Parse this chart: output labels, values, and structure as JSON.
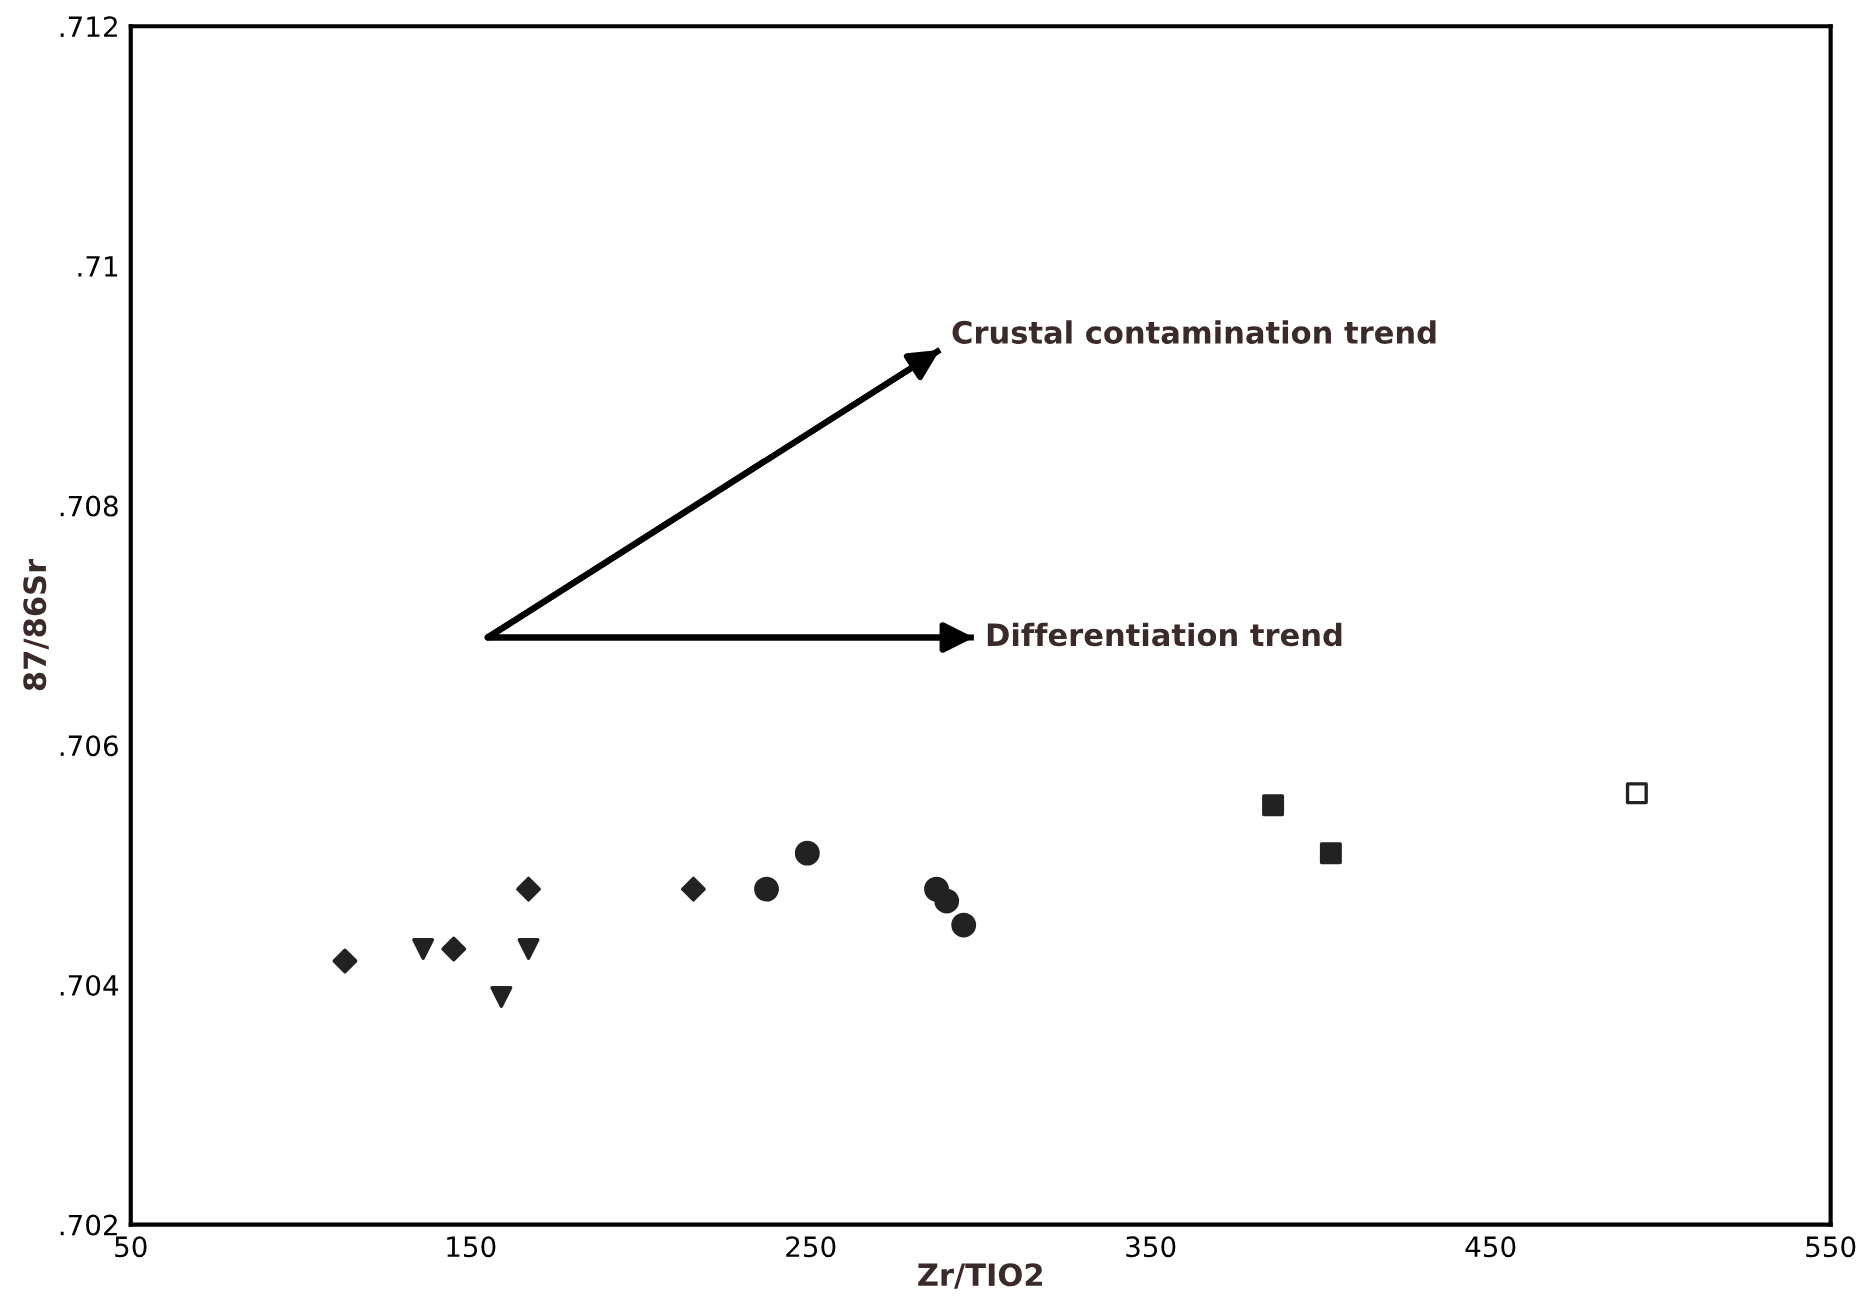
{
  "chart_data": {
    "type": "scatter",
    "xlabel": "Zr/TIO2",
    "ylabel": "87/86Sr",
    "xlim": [
      50,
      550
    ],
    "xticks": [
      50,
      150,
      250,
      350,
      450,
      550
    ],
    "ylim": [
      0.702,
      0.712
    ],
    "yticks": [
      {
        "value": 0.702,
        "label": ".702"
      },
      {
        "value": 0.704,
        "label": ".704"
      },
      {
        "value": 0.706,
        "label": ".706"
      },
      {
        "value": 0.708,
        "label": ".708"
      },
      {
        "value": 0.71,
        "label": ".71"
      },
      {
        "value": 0.712,
        "label": ".712"
      }
    ],
    "grid": false,
    "legend": false,
    "series": [
      {
        "marker": "diamond",
        "color": "#222222",
        "x": [
          113,
          145,
          167,
          215.5
        ],
        "values": [
          0.7042,
          0.7043,
          0.7048,
          0.7048
        ]
      },
      {
        "marker": "triangle",
        "color": "#222222",
        "x": [
          136,
          159,
          167
        ],
        "values": [
          0.7043,
          0.7039,
          0.7043
        ]
      },
      {
        "marker": "circle",
        "color": "#222222",
        "x": [
          237,
          249,
          287,
          290,
          295
        ],
        "values": [
          0.7048,
          0.7051,
          0.7048,
          0.7047,
          0.7045
        ]
      },
      {
        "marker": "square",
        "color": "#222222",
        "x": [
          386,
          403
        ],
        "values": [
          0.7055,
          0.7051
        ]
      },
      {
        "marker": "square",
        "color": "#ffffff",
        "x": [
          493
        ],
        "values": [
          0.7056
        ]
      },
      {
        "type": "line",
        "color": "#000000",
        "x": [
          155,
          288
        ],
        "values": [
          0.7069,
          0.7093
        ]
      },
      {
        "type": "line",
        "color": "#000000",
        "x": [
          155,
          298
        ],
        "values": [
          0.7069,
          0.7069
        ]
      }
    ],
    "annotations": [
      {
        "text": "Crustal contamination trend",
        "x": 288,
        "y": 0.7093
      },
      {
        "text": "Differentiation trend",
        "x": 298,
        "y": 0.7069
      }
    ]
  }
}
